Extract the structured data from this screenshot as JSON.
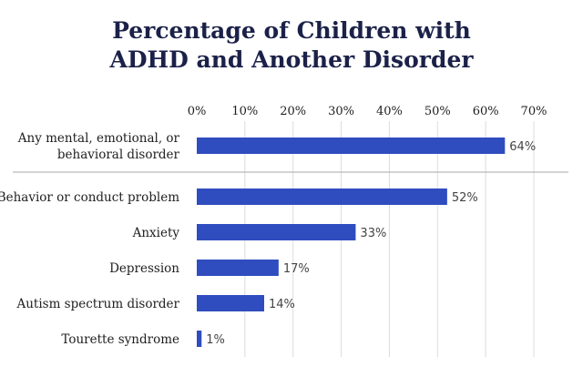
{
  "title_lines": [
    "Percentage of Children with",
    "ADHD and Another Disorder"
  ],
  "colors": {
    "bar": "#2f4dbf",
    "title": "#1b2148",
    "grid": "#dcdcdc",
    "divider": "#a8a8a8"
  },
  "chart_data": {
    "type": "bar",
    "orientation": "horizontal",
    "title": "Percentage of Children with ADHD and Another Disorder",
    "xlabel": "",
    "ylabel": "",
    "xlim": [
      0,
      70
    ],
    "x_ticks": [
      0,
      10,
      20,
      30,
      40,
      50,
      60,
      70
    ],
    "x_tick_labels": [
      "0%",
      "10%",
      "20%",
      "30%",
      "40%",
      "50%",
      "60%",
      "70%"
    ],
    "x_axis_position": "top",
    "grid": true,
    "categories": [
      [
        "Any mental, emotional, or",
        "behavioral disorder"
      ],
      [
        "Behavior or conduct problem"
      ],
      [
        "Anxiety"
      ],
      [
        "Depression"
      ],
      [
        "Autism spectrum disorder"
      ],
      [
        "Tourette syndrome"
      ]
    ],
    "values": [
      64,
      52,
      33,
      17,
      14,
      1
    ],
    "value_labels": [
      "64%",
      "52%",
      "33%",
      "17%",
      "14%",
      "1%"
    ],
    "divider_after_category": 0
  }
}
